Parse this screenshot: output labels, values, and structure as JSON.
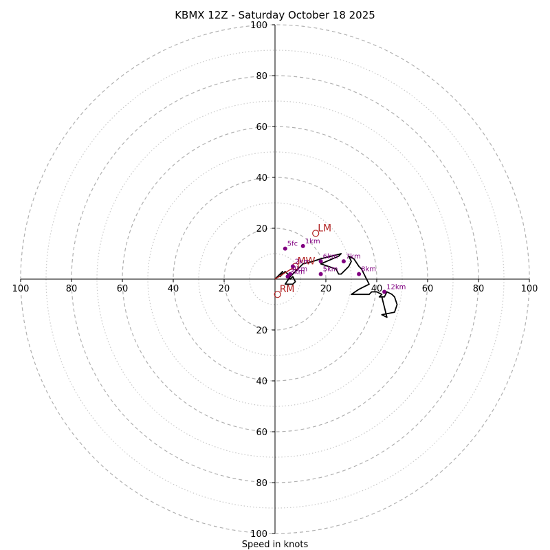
{
  "chart_data": {
    "type": "line",
    "subtype": "hodograph",
    "title": "KBMX 12Z - Saturday October 18 2025",
    "xlabel": "Speed in knots",
    "ylabel": "",
    "xlim": [
      -100,
      100
    ],
    "ylim": [
      -100,
      100
    ],
    "rings": [
      10,
      20,
      30,
      40,
      50,
      60,
      70,
      80,
      90,
      100
    ],
    "ticks": [
      20,
      40,
      60,
      80,
      100
    ],
    "tick_labels": {
      "left": [
        "100",
        "80",
        "60",
        "40",
        "20"
      ],
      "right": [
        "20",
        "40",
        "60",
        "80",
        "100"
      ],
      "top": [
        "20",
        "40",
        "60",
        "80",
        "100"
      ],
      "bottom": [
        "20",
        "40",
        "60",
        "80",
        "100"
      ]
    },
    "trace": {
      "color": "#000000",
      "u": [
        0,
        1,
        3,
        2,
        4,
        5,
        6,
        7,
        8,
        7,
        4,
        6,
        9,
        11,
        15,
        18,
        22,
        26,
        25,
        18,
        24,
        25,
        26,
        28,
        29,
        30,
        29,
        31,
        33,
        34,
        35,
        36,
        37,
        35,
        33,
        30,
        33,
        31,
        33,
        37,
        38,
        39,
        40,
        42,
        41,
        43,
        44,
        46,
        47,
        48,
        47,
        42,
        44,
        43,
        42
      ],
      "v": [
        0,
        1,
        3,
        1,
        3,
        2,
        0,
        1,
        -1,
        -2,
        -2,
        1,
        4,
        6,
        7,
        8,
        9,
        10,
        9,
        6,
        4,
        2,
        2,
        4,
        5,
        7,
        9,
        8,
        5,
        4,
        2,
        0,
        -2,
        -3,
        -4,
        -6,
        -6,
        -6,
        -6,
        -6,
        -5,
        -5,
        -5,
        -6,
        -7,
        -7,
        -5,
        -6,
        -7,
        -10,
        -13,
        -14,
        -15,
        -11,
        -7
      ]
    },
    "points": [
      {
        "label": "5fc",
        "u": 4,
        "v": 12
      },
      {
        "label": "1km",
        "u": 11,
        "v": 13
      },
      {
        "label": "2km",
        "u": 7,
        "v": 5
      },
      {
        "label": "4km",
        "u": 6,
        "v": 2
      },
      {
        "label": "3km",
        "u": 5,
        "v": 1
      },
      {
        "label": "6km",
        "u": 18,
        "v": 7
      },
      {
        "label": "5km",
        "u": 18,
        "v": 2
      },
      {
        "label": "7km",
        "u": 27,
        "v": 7
      },
      {
        "label": "8km",
        "u": 33,
        "v": 2
      },
      {
        "label": "12km",
        "u": 43,
        "v": -5
      }
    ],
    "storm_motions": [
      {
        "label": "LM",
        "u": 16,
        "v": 18
      },
      {
        "label": "MW",
        "u": 8,
        "v": 5
      },
      {
        "label": "RM",
        "u": 1,
        "v": -6
      }
    ],
    "mean_wind_vector": {
      "label": "",
      "u": 8,
      "v": 5,
      "color": "#b22222"
    },
    "colors": {
      "trace": "#000000",
      "points": "#800080",
      "motion": "#b22222",
      "ring_major": "#b0b0b0",
      "ring_minor": "#c8c8c8",
      "axis": "#000000"
    }
  }
}
